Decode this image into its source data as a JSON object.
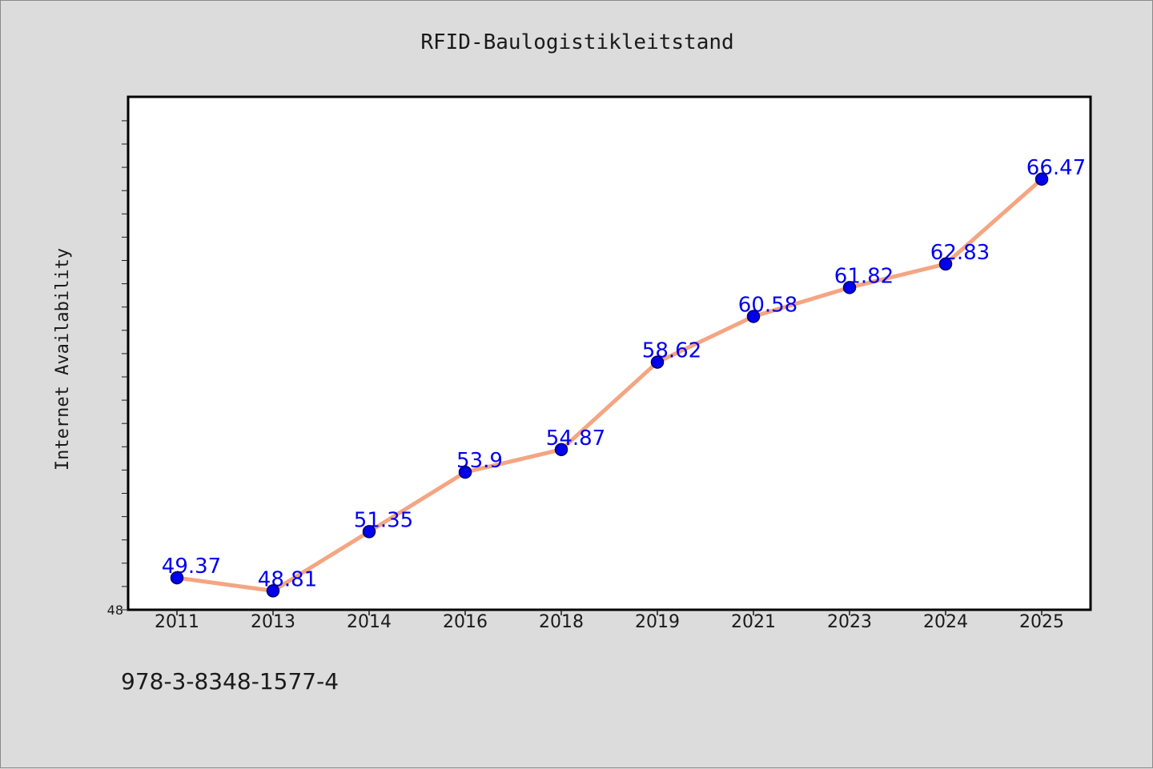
{
  "chart_data": {
    "type": "line",
    "title": "RFID-Baulogistikleitstand",
    "xlabel": "",
    "ylabel": "Internet Availability",
    "categories": [
      "2011",
      "2013",
      "2014",
      "2016",
      "2018",
      "2019",
      "2021",
      "2023",
      "2024",
      "2025"
    ],
    "series": [
      {
        "values": [
          49.37,
          48.81,
          51.35,
          53.9,
          54.87,
          58.62,
          60.58,
          61.82,
          62.83,
          66.47
        ],
        "data_labels": [
          "49.37",
          "48.81",
          "51.35",
          "53.9",
          "54.87",
          "58.62",
          "60.58",
          "61.82",
          "62.83",
          "66.47"
        ]
      }
    ],
    "ylim": [
      48,
      70
    ],
    "ytick_labels": [
      "48"
    ],
    "grid": false,
    "legend": "none",
    "colors": {
      "line": "#f4a582",
      "marker": "#0000ee",
      "data_label": "#0000ee",
      "plot_background": "#ffffff",
      "page_background": "#dcdcdc"
    }
  },
  "footer": {
    "text": "978-3-8348-1577-4"
  }
}
